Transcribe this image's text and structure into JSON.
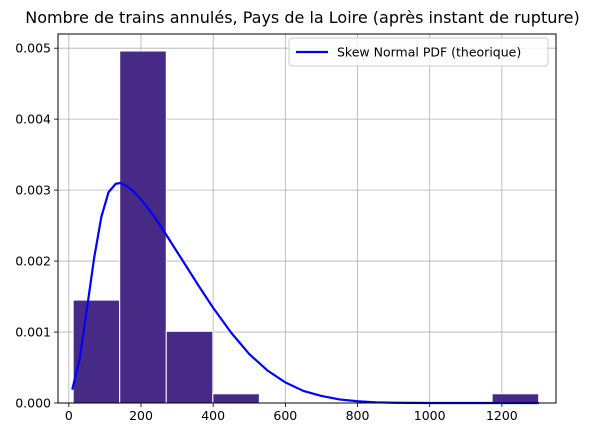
{
  "chart_data": {
    "type": "bar",
    "title": "Nombre de trains annulés, Pays de la Loire (après instant de rupture)",
    "xlabel": "",
    "ylabel": "",
    "xlim": [
      -30,
      1350
    ],
    "ylim": [
      0,
      0.0052
    ],
    "grid": true,
    "legend_position": "top-right",
    "x_ticks": [
      0,
      200,
      400,
      600,
      800,
      1000,
      1200
    ],
    "x_tick_labels": [
      "0",
      "200",
      "400",
      "600",
      "800",
      "1000",
      "1200"
    ],
    "y_ticks": [
      0,
      0.001,
      0.002,
      0.003,
      0.004,
      0.005
    ],
    "y_tick_labels": [
      "0.000",
      "0.001",
      "0.002",
      "0.003",
      "0.004",
      "0.005"
    ],
    "histogram": {
      "color": "#472a86",
      "edge_color": "#ffffff",
      "bins": [
        {
          "start": 12,
          "end": 141,
          "density": 0.00145
        },
        {
          "start": 141,
          "end": 270,
          "density": 0.00496
        },
        {
          "start": 270,
          "end": 399,
          "density": 0.00101
        },
        {
          "start": 399,
          "end": 528,
          "density": 0.00013
        },
        {
          "start": 528,
          "end": 657,
          "density": 0
        },
        {
          "start": 657,
          "end": 786,
          "density": 0
        },
        {
          "start": 786,
          "end": 915,
          "density": 0
        },
        {
          "start": 915,
          "end": 1044,
          "density": 0
        },
        {
          "start": 1044,
          "end": 1173,
          "density": 0
        },
        {
          "start": 1173,
          "end": 1302,
          "density": 0.00013
        }
      ]
    },
    "series": [
      {
        "name": "Skew Normal PDF (theorique)",
        "type": "line",
        "color": "#0000ff",
        "x": [
          10,
          30,
          50,
          70,
          90,
          110,
          130,
          143,
          160,
          180,
          200,
          220,
          240,
          260,
          280,
          300,
          330,
          360,
          400,
          450,
          500,
          550,
          600,
          650,
          700,
          750,
          800,
          850,
          900,
          1000,
          1100,
          1200,
          1300
        ],
        "y": [
          0.0002,
          0.00062,
          0.00132,
          0.00204,
          0.00262,
          0.00297,
          0.00309,
          0.0031,
          0.00306,
          0.00298,
          0.00287,
          0.00274,
          0.0026,
          0.00245,
          0.00229,
          0.00213,
          0.00189,
          0.00165,
          0.00134,
          0.00099,
          0.00069,
          0.00046,
          0.00029,
          0.00017,
          0.0001,
          5e-05,
          2.5e-05,
          1e-05,
          4e-06,
          5e-07,
          0,
          0,
          0
        ]
      }
    ]
  }
}
